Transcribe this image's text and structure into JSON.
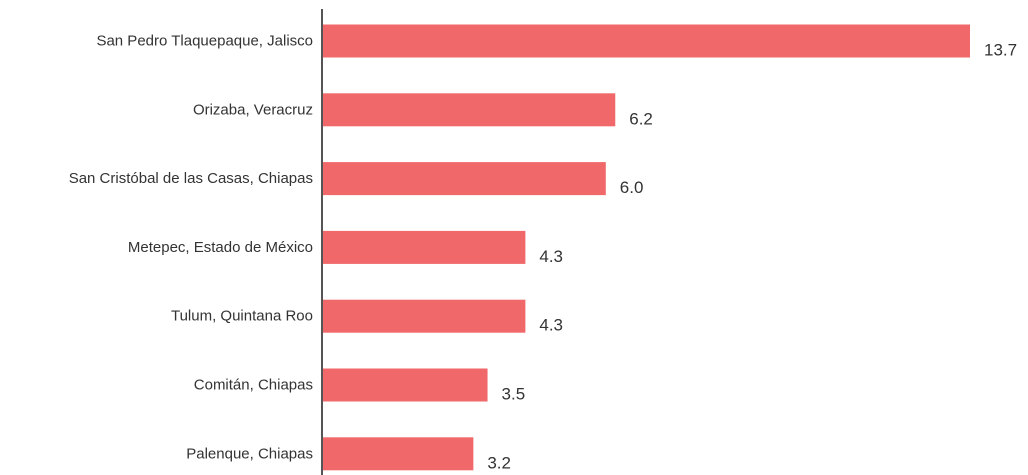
{
  "chart_data": {
    "type": "bar",
    "orientation": "horizontal",
    "title": "",
    "xlabel": "",
    "ylabel": "",
    "grid": false,
    "legend": "none",
    "xlim": [
      0,
      13.7
    ],
    "categories": [
      "San Pedro Tlaquepaque, Jalisco",
      "Orizaba, Veracruz",
      "San Cristóbal de las Casas, Chiapas",
      "Metepec, Estado de México",
      "Tulum, Quintana Roo",
      "Comitán, Chiapas",
      "Palenque, Chiapas"
    ],
    "values": [
      13.7,
      6.2,
      6.0,
      4.3,
      4.3,
      3.5,
      3.2
    ],
    "value_labels": [
      "13.7",
      "6.2",
      "6.0",
      "4.3",
      "4.3",
      "3.5",
      "3.2"
    ],
    "colors": {
      "bar": "#f0686a",
      "axis": "#555555",
      "text": "#333333"
    }
  }
}
